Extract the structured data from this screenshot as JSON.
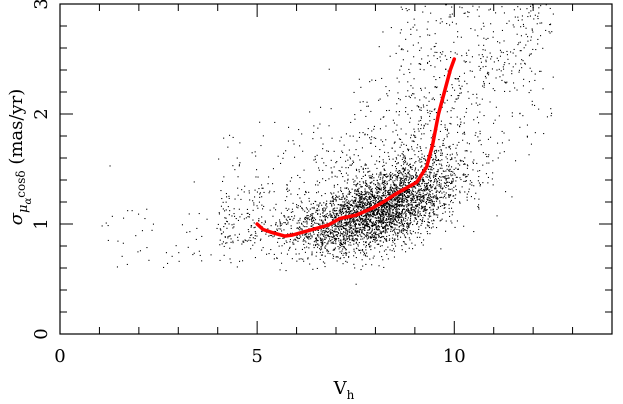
{
  "chart_data": {
    "type": "scatter",
    "xlim": [
      0,
      14
    ],
    "ylim": [
      0,
      3
    ],
    "xticks": [
      "0",
      "5",
      "10"
    ],
    "yticks": [
      "0",
      "1",
      "2",
      "3"
    ],
    "xlabel": {
      "main": "V",
      "sub": "h"
    },
    "ylabel": {
      "sigma": "σ",
      "mu": "μ",
      "sub_alpha": "α",
      "cos": "cosδ",
      "unit": " (mas/yr)"
    },
    "grid": false,
    "series": [
      {
        "kind": "scatter-cloud",
        "color": "#000000",
        "x_range": [
          1,
          12.5
        ],
        "y_range": [
          0.5,
          3
        ],
        "density_peak": {
          "x": 8.3,
          "y": 1.0
        }
      },
      {
        "kind": "trend-line",
        "color": "#ff0000",
        "x": [
          5.0,
          5.15,
          5.4,
          5.7,
          5.9,
          6.2,
          6.5,
          6.8,
          7.1,
          7.5,
          7.9,
          8.2,
          8.5,
          8.8,
          9.05,
          9.3,
          9.45,
          9.6,
          9.75,
          9.9,
          10.0
        ],
        "y": [
          1.0,
          0.95,
          0.92,
          0.89,
          0.9,
          0.93,
          0.96,
          0.99,
          1.05,
          1.08,
          1.14,
          1.2,
          1.27,
          1.33,
          1.38,
          1.52,
          1.72,
          2.0,
          2.2,
          2.4,
          2.5
        ]
      }
    ]
  }
}
